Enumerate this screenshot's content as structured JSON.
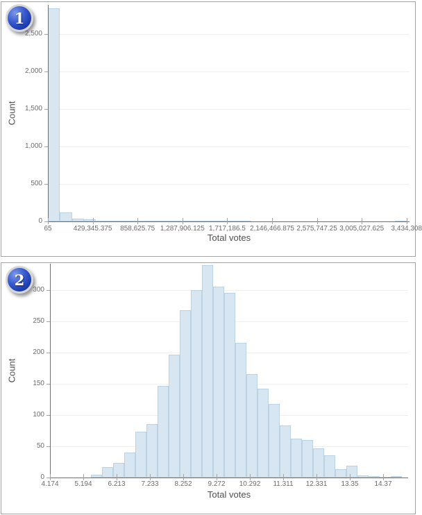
{
  "colors": {
    "bar_fill": "#d7e6f1",
    "bar_border": "#b9d3e5",
    "axis_line": "#6f6f6f",
    "gridline": "#efefef",
    "tick_mark": "#a3a3a3",
    "tick_label": "#6b6b6b",
    "axis_title": "#4f4f4f",
    "panel_border": "#a3a3a3",
    "badge_blue": "#2749c0"
  },
  "chart_data": [
    {
      "type": "histogram",
      "badge": "1",
      "xlabel": "Total votes",
      "ylabel": "Count",
      "x_tick_labels": [
        "65",
        "429,345.375",
        "858,625.75",
        "1,287,906.125",
        "1,717,186.5",
        "2,146,466.875",
        "2,575,747.25",
        "3,005,027.625",
        "3,434,308"
      ],
      "y_tick_labels": [
        "0",
        "500",
        "1,000",
        "1,500",
        "2,000",
        "2,500"
      ],
      "y_tick_values": [
        0,
        500,
        1000,
        1500,
        2000,
        2500
      ],
      "ylim": [
        0,
        2889
      ],
      "bin_start_value": 65,
      "bin_value_width": 114700,
      "counts": [
        2845,
        122,
        40,
        24,
        8,
        7,
        6,
        3,
        2,
        3,
        1,
        1,
        1,
        1,
        2,
        1,
        1,
        0,
        0,
        0,
        0,
        0,
        0,
        0,
        0,
        0,
        0,
        0,
        0,
        1
      ]
    },
    {
      "type": "histogram",
      "badge": "2",
      "xlabel": "Total votes",
      "ylabel": "Count",
      "x_tick_labels": [
        "4.174",
        "5.194",
        "6.213",
        "7.233",
        "8.252",
        "9.272",
        "10.292",
        "11.311",
        "12.331",
        "13.35",
        "14.37"
      ],
      "y_tick_labels": [
        "0",
        "50",
        "100",
        "150",
        "200",
        "250",
        "300"
      ],
      "y_tick_values": [
        0,
        50,
        100,
        150,
        200,
        250,
        300
      ],
      "ylim": [
        0,
        342
      ],
      "bin_start_value": 5.47,
      "bin_value_width": 0.34,
      "counts": [
        4,
        17,
        23,
        40,
        73,
        85,
        147,
        196,
        268,
        300,
        340,
        305,
        295,
        215,
        166,
        142,
        118,
        83,
        62,
        60,
        47,
        36,
        13,
        19,
        3,
        2,
        1,
        2
      ]
    }
  ]
}
